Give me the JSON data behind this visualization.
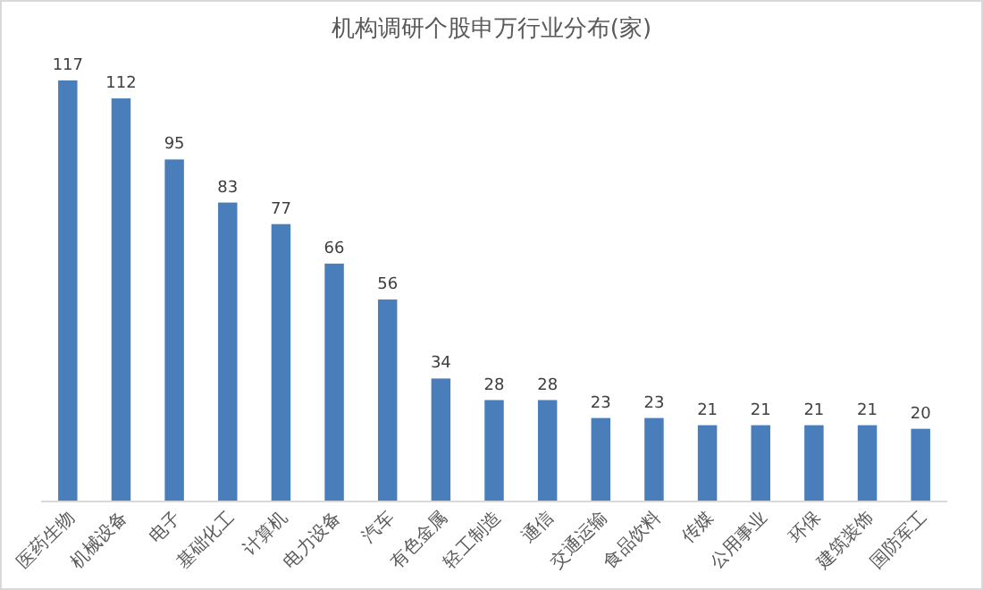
{
  "chart_data": {
    "type": "bar",
    "title": "机构调研个股申万行业分布(家)",
    "categories": [
      "医药生物",
      "机械设备",
      "电子",
      "基础化工",
      "计算机",
      "电力设备",
      "汽车",
      "有色金属",
      "轻工制造",
      "通信",
      "交通运输",
      "食品饮料",
      "传媒",
      "公用事业",
      "环保",
      "建筑装饰",
      "国防军工"
    ],
    "values": [
      117,
      112,
      95,
      83,
      77,
      66,
      56,
      34,
      28,
      28,
      23,
      23,
      21,
      21,
      21,
      21,
      20
    ],
    "color": "#4a7ebb",
    "data_labels": true
  }
}
